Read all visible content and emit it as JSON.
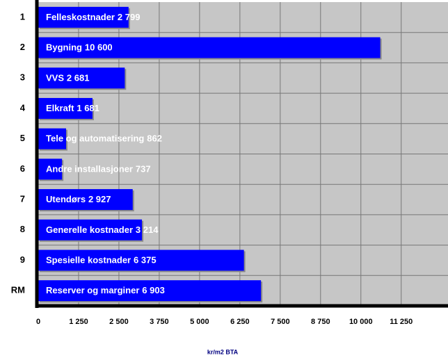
{
  "chart_data": {
    "type": "barh",
    "categories": [
      "1",
      "2",
      "3",
      "4",
      "5",
      "6",
      "7",
      "8",
      "9",
      "RM"
    ],
    "names": [
      "Felleskostnader",
      "Bygning",
      "VVS",
      "Elkraft",
      "Tele og automatisering",
      "Andre installasjoner",
      "Utendørs",
      "Generelle kostnader",
      "Spesielle kostnader",
      "Reserver og marginer"
    ],
    "values": [
      2799,
      10600,
      2681,
      1681,
      862,
      737,
      2927,
      3214,
      6375,
      6903
    ],
    "value_labels": [
      "2 799",
      "10 600",
      "2 681",
      "1 681",
      "862",
      "737",
      "2 927",
      "3 214",
      "6 375",
      "6 903"
    ],
    "color": "#0000ff",
    "xlabel": "kr/m2 BTA",
    "xlim": [
      0,
      12700
    ],
    "xticks": [
      0,
      {
        "value": 1250,
        "label": "1 250"
      },
      {
        "value": 2500,
        "label": "2 500"
      },
      {
        "value": 3750,
        "label": "3 750"
      },
      {
        "value": 5000,
        "label": "5 000"
      },
      {
        "value": 6250,
        "label": "6 250"
      },
      {
        "value": 7500,
        "label": "7 500"
      },
      {
        "value": 8750,
        "label": "8 750"
      },
      {
        "value": 10000,
        "label": "10 000"
      },
      {
        "value": 11250,
        "label": "11 250"
      }
    ],
    "grid": true
  }
}
